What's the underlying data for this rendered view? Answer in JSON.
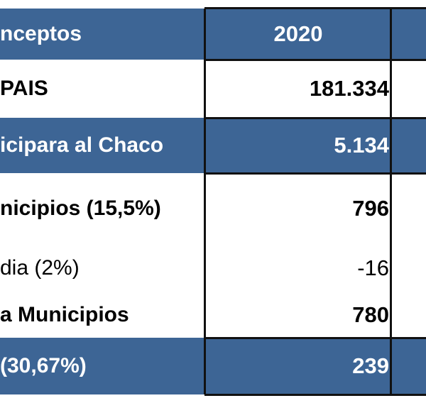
{
  "table": {
    "header": {
      "concept": "nceptos",
      "year": "2020"
    },
    "rows": [
      {
        "concept": "PAIS",
        "value": "181.334",
        "style": "white-bold"
      },
      {
        "concept": "icipara al Chaco",
        "value": "5.134",
        "style": "blue-bold"
      },
      {
        "concept": "nicipios  (15,5%)",
        "value": "796",
        "style": "white-bold"
      },
      {
        "concept": "dia (2%)",
        "value": "-16",
        "style": "white-normal"
      },
      {
        "concept": "a Municipios",
        "value": "780",
        "style": "white-bold"
      },
      {
        "concept": "(30,67%)",
        "value": "239",
        "style": "blue-bold"
      }
    ]
  },
  "colors": {
    "header_blue": "#3d6595",
    "text_white": "#ffffff",
    "text_black": "#111111",
    "grid": "#111111"
  }
}
